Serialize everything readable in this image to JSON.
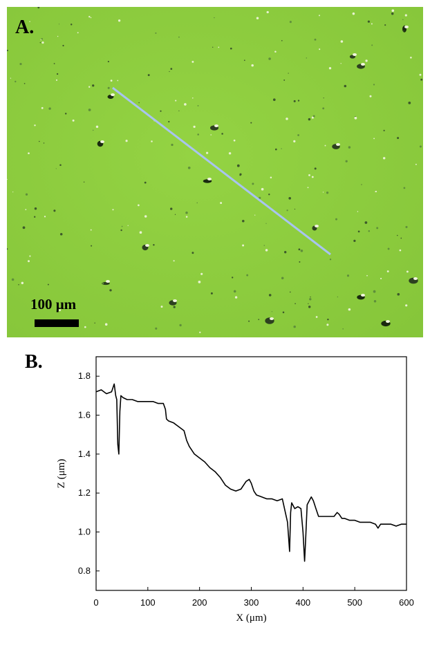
{
  "panel_a": {
    "label": "A.",
    "scale_bar_label": "100 μm",
    "colors": {
      "background": "#8fcf3f",
      "profile_line": "#a8c4f0"
    }
  },
  "panel_b": {
    "label": "B."
  },
  "chart_data": {
    "type": "line",
    "xlabel": "X (μm)",
    "ylabel": "Z (μm)",
    "xlim": [
      0,
      600
    ],
    "ylim": [
      0.7,
      1.9
    ],
    "xticks": [
      0,
      100,
      200,
      300,
      400,
      500,
      600
    ],
    "yticks": [
      0.8,
      1.0,
      1.2,
      1.4,
      1.6,
      1.8
    ],
    "grid": false,
    "series": [
      {
        "color": "#000000",
        "x": [
          0,
          10,
          20,
          30,
          35,
          38,
          40,
          42,
          44,
          46,
          48,
          52,
          60,
          70,
          80,
          90,
          100,
          110,
          120,
          130,
          134,
          136,
          140,
          150,
          160,
          170,
          175,
          180,
          190,
          200,
          210,
          220,
          230,
          240,
          250,
          260,
          270,
          280,
          290,
          296,
          300,
          305,
          310,
          320,
          330,
          340,
          350,
          360,
          370,
          374,
          376,
          378,
          380,
          384,
          390,
          396,
          400,
          403,
          405,
          408,
          412,
          416,
          420,
          425,
          430,
          440,
          450,
          460,
          466,
          470,
          475,
          480,
          490,
          500,
          510,
          520,
          530,
          540,
          545,
          550,
          560,
          570,
          580,
          590,
          600
        ],
        "y": [
          1.72,
          1.73,
          1.71,
          1.72,
          1.76,
          1.7,
          1.68,
          1.45,
          1.4,
          1.62,
          1.7,
          1.69,
          1.68,
          1.68,
          1.67,
          1.67,
          1.67,
          1.67,
          1.66,
          1.66,
          1.63,
          1.58,
          1.57,
          1.56,
          1.54,
          1.52,
          1.47,
          1.44,
          1.4,
          1.38,
          1.36,
          1.33,
          1.31,
          1.28,
          1.24,
          1.22,
          1.21,
          1.22,
          1.26,
          1.27,
          1.25,
          1.21,
          1.19,
          1.18,
          1.17,
          1.17,
          1.16,
          1.17,
          1.05,
          0.9,
          1.1,
          1.15,
          1.14,
          1.12,
          1.13,
          1.12,
          1.0,
          0.85,
          0.96,
          1.14,
          1.16,
          1.18,
          1.16,
          1.12,
          1.08,
          1.08,
          1.08,
          1.08,
          1.1,
          1.09,
          1.07,
          1.07,
          1.06,
          1.06,
          1.05,
          1.05,
          1.05,
          1.04,
          1.02,
          1.04,
          1.04,
          1.04,
          1.03,
          1.04,
          1.04
        ]
      }
    ]
  }
}
